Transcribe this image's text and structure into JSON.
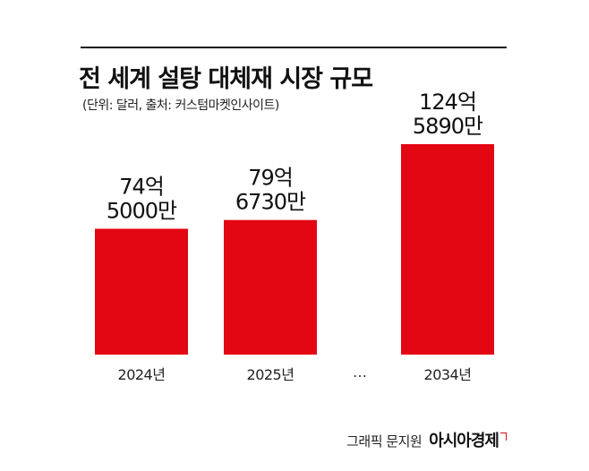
{
  "header": {
    "title": "전 세계 설탕 대체재 시장 규모",
    "subtitle": "(단위: 달러, 출처: 커스텀마켓인사이트)"
  },
  "footer": {
    "credit_label": "그래픽 문지원",
    "brand": "아시아경제"
  },
  "chart_data": {
    "type": "bar",
    "categories": [
      "2024년",
      "2025년",
      "2034년"
    ],
    "values": [
      7450000000,
      7967300000,
      12458900000
    ],
    "data_labels": [
      [
        "74억",
        "5000만"
      ],
      [
        "79억",
        "6730만"
      ],
      [
        "124억",
        "5890만"
      ]
    ],
    "gap_marker": "…",
    "bar_color": "#e30613",
    "grid": false,
    "ylim": [
      0,
      14100000000
    ]
  }
}
